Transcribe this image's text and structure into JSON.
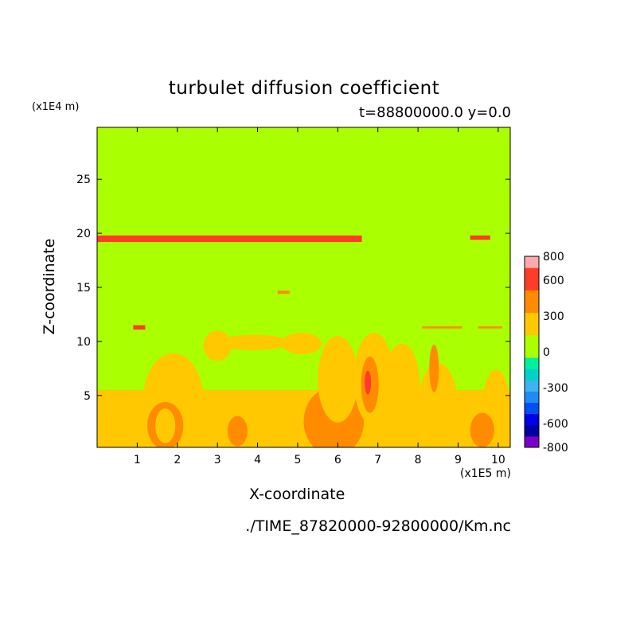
{
  "chart_data": {
    "type": "heatmap",
    "title": "turbulet diffusion coefficient",
    "subtitle": "t=88800000.0 y=0.0",
    "xlabel": "X-coordinate",
    "ylabel": "Z-coordinate",
    "x_unit": "(x1E5 m)",
    "y_unit": "(x1E4 m)",
    "source": "./TIME_87820000-92800000/Km.nc",
    "xlim": [
      0,
      10.3
    ],
    "ylim": [
      0.2,
      29.8
    ],
    "x_ticks": [
      1,
      2,
      3,
      4,
      5,
      6,
      7,
      8,
      9,
      10
    ],
    "x_tick_labels": [
      "1",
      "2",
      "3",
      "4",
      "5",
      "6",
      "7",
      "8",
      "9",
      "10"
    ],
    "y_ticks": [
      5,
      10,
      15,
      20,
      25
    ],
    "y_tick_labels": [
      "5",
      "10",
      "15",
      "20",
      "25"
    ],
    "colorbar": {
      "levels": [
        -800,
        -700,
        -600,
        -500,
        -400,
        -300,
        -200,
        -100,
        0,
        100,
        200,
        300,
        400,
        500,
        600,
        700,
        800
      ],
      "labels": [
        "-800",
        "-600",
        "-300",
        "0",
        "300",
        "600",
        "800"
      ],
      "label_values": [
        -800,
        -600,
        -300,
        0,
        300,
        600,
        800
      ],
      "colors": [
        "#7a00c8",
        "#0000a0",
        "#0000e6",
        "#0050f0",
        "#1e8cf0",
        "#3cb4f0",
        "#00d2c8",
        "#00f0a0",
        "#aaff00",
        "#aaff00",
        "#ffc800",
        "#ffc800",
        "#ff8c00",
        "#ff8c00",
        "#ff3c28",
        "#ff3c28",
        "#ffaaaa"
      ]
    },
    "background_value": 50,
    "regions": [
      {
        "kind": "band",
        "x0": 0,
        "x1": 10.3,
        "z0": 0.2,
        "z1": 5.5,
        "value": 250
      },
      {
        "kind": "blob",
        "cx": 1.9,
        "cz": 4.6,
        "rx": 0.75,
        "rz": 4.3,
        "value": 250
      },
      {
        "kind": "blob",
        "cx": 1.7,
        "cz": 2.2,
        "rx": 0.45,
        "rz": 2.2,
        "value": 450
      },
      {
        "kind": "blob",
        "cx": 1.7,
        "cz": 2.2,
        "rx": 0.25,
        "rz": 1.6,
        "value": 250
      },
      {
        "kind": "blob",
        "cx": 2.9,
        "cz": 1.6,
        "rx": 0.6,
        "rz": 1.2,
        "value": 250
      },
      {
        "kind": "blob",
        "cx": 3.5,
        "cz": 1.7,
        "rx": 0.25,
        "rz": 1.4,
        "value": 450
      },
      {
        "kind": "blob",
        "cx": 4.5,
        "cz": 1.2,
        "rx": 0.6,
        "rz": 1.0,
        "value": 250
      },
      {
        "kind": "blob",
        "cx": 5.9,
        "cz": 2.6,
        "rx": 0.75,
        "rz": 3.2,
        "value": 450
      },
      {
        "kind": "blob",
        "cx": 6.0,
        "cz": 6.5,
        "rx": 0.5,
        "rz": 4.0,
        "value": 250
      },
      {
        "kind": "blob",
        "cx": 6.9,
        "cz": 6.5,
        "rx": 0.5,
        "rz": 4.3,
        "value": 250
      },
      {
        "kind": "blob",
        "cx": 6.8,
        "cz": 6.0,
        "rx": 0.22,
        "rz": 2.6,
        "value": 450
      },
      {
        "kind": "blob",
        "cx": 6.75,
        "cz": 6.2,
        "rx": 0.08,
        "rz": 1.1,
        "value": 650
      },
      {
        "kind": "blob",
        "cx": 7.6,
        "cz": 5.8,
        "rx": 0.45,
        "rz": 4.0,
        "value": 250
      },
      {
        "kind": "blob",
        "cx": 8.5,
        "cz": 3.8,
        "rx": 0.5,
        "rz": 4.2,
        "value": 250
      },
      {
        "kind": "blob",
        "cx": 8.4,
        "cz": 7.5,
        "rx": 0.12,
        "rz": 2.2,
        "value": 450
      },
      {
        "kind": "blob",
        "cx": 9.95,
        "cz": 3.8,
        "rx": 0.35,
        "rz": 3.6,
        "value": 250
      },
      {
        "kind": "blob",
        "cx": 9.6,
        "cz": 1.8,
        "rx": 0.3,
        "rz": 1.6,
        "value": 450
      },
      {
        "kind": "blob",
        "cx": 3.9,
        "cz": 9.9,
        "rx": 0.9,
        "rz": 0.7,
        "value": 250
      },
      {
        "kind": "blob",
        "cx": 5.1,
        "cz": 9.8,
        "rx": 0.5,
        "rz": 1.0,
        "value": 250
      },
      {
        "kind": "blob",
        "cx": 3.0,
        "cz": 9.6,
        "rx": 0.35,
        "rz": 1.4,
        "value": 250
      },
      {
        "kind": "band",
        "x0": 0,
        "x1": 6.6,
        "z0": 19.2,
        "z1": 19.8,
        "value": 650
      },
      {
        "kind": "band",
        "x0": 9.3,
        "x1": 9.8,
        "z0": 19.4,
        "z1": 19.8,
        "value": 650
      },
      {
        "kind": "band",
        "x0": 0.9,
        "x1": 1.2,
        "z0": 11.1,
        "z1": 11.5,
        "value": 650
      },
      {
        "kind": "band",
        "x0": 8.1,
        "x1": 9.1,
        "z0": 11.2,
        "z1": 11.4,
        "value": 450
      },
      {
        "kind": "band",
        "x0": 9.5,
        "x1": 10.1,
        "z0": 11.2,
        "z1": 11.4,
        "value": 450
      },
      {
        "kind": "band",
        "x0": 4.5,
        "x1": 4.8,
        "z0": 14.4,
        "z1": 14.7,
        "value": 450
      }
    ]
  }
}
